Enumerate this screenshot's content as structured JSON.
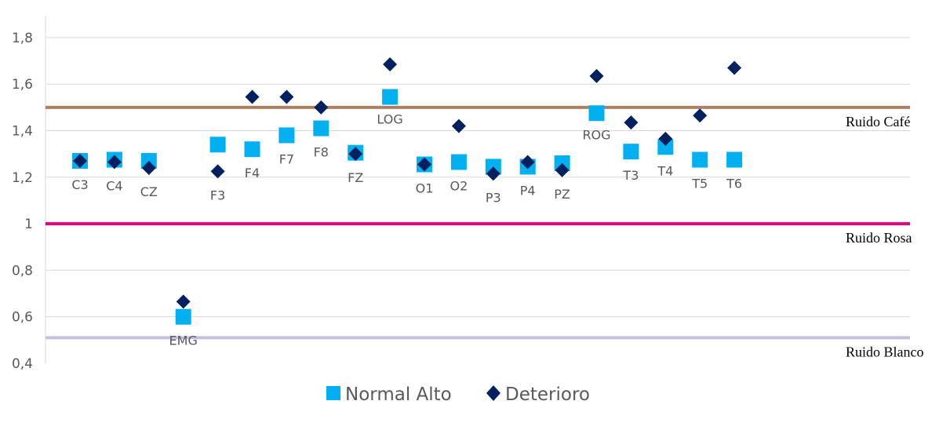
{
  "chart_data": {
    "type": "scatter",
    "title": "",
    "xlabel": "",
    "ylabel": "",
    "ylim": [
      0.4,
      1.9
    ],
    "yticks": [
      "0,4",
      "0,6",
      "0,8",
      "1",
      "1,2",
      "1,4",
      "1,6",
      "1,8"
    ],
    "grid": true,
    "legend_position": "bottom",
    "categories": [
      "C3",
      "C4",
      "CZ",
      "EMG",
      "F3",
      "F4",
      "F7",
      "F8",
      "FZ",
      "LOG",
      "O1",
      "O2",
      "P3",
      "P4",
      "PZ",
      "ROG",
      "T3",
      "T4",
      "T5",
      "T6"
    ],
    "series": [
      {
        "name": "Normal Alto",
        "color": "#00B0F0",
        "marker": "square",
        "values": [
          1.27,
          1.275,
          1.27,
          0.6,
          1.34,
          1.32,
          1.38,
          1.41,
          1.305,
          1.545,
          1.255,
          1.265,
          1.245,
          1.245,
          1.26,
          1.475,
          1.31,
          1.33,
          1.275,
          1.275
        ]
      },
      {
        "name": "Deterioro",
        "color": "#002060",
        "marker": "diamond",
        "values": [
          1.27,
          1.265,
          1.24,
          0.665,
          1.225,
          1.545,
          1.545,
          1.5,
          1.3,
          1.685,
          1.255,
          1.42,
          1.215,
          1.265,
          1.23,
          1.635,
          1.435,
          1.365,
          1.465,
          1.67
        ]
      }
    ],
    "reference_lines": [
      {
        "name": "Ruido Café",
        "value": 1.5,
        "color": "#B07F63"
      },
      {
        "name": "Ruido Rosa",
        "value": 1.0,
        "color": "#E6007E"
      },
      {
        "name": "Ruido Blanco",
        "value": 0.51,
        "color": "#C6BFE0"
      }
    ]
  }
}
